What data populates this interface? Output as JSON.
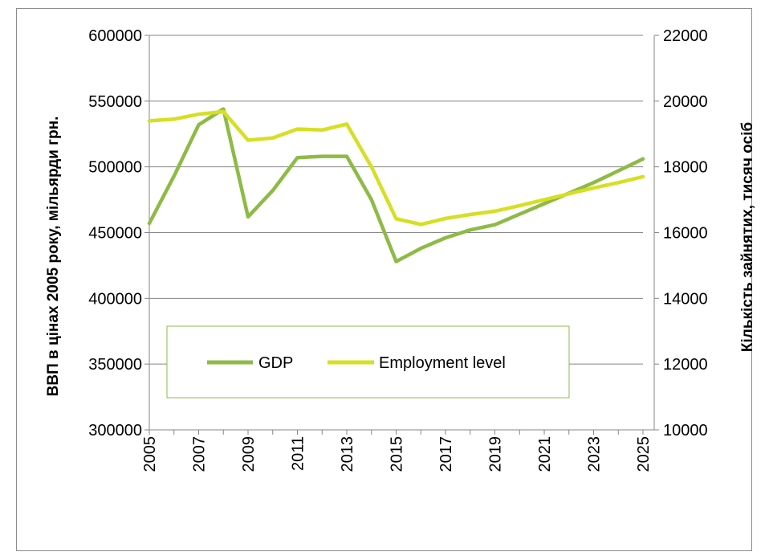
{
  "chart_data": {
    "type": "line",
    "x": [
      2005,
      2006,
      2007,
      2008,
      2009,
      2010,
      2011,
      2012,
      2013,
      2014,
      2015,
      2016,
      2017,
      2018,
      2019,
      2020,
      2021,
      2022,
      2023,
      2024,
      2025
    ],
    "x_tick_labels": [
      "2005",
      "2007",
      "2009",
      "2011",
      "2013",
      "2015",
      "2017",
      "2019",
      "2021",
      "2023",
      "2025"
    ],
    "ylabel": "ВВП в цінах 2005 року, мільярди грн.",
    "y2label": "Кількість зайнятих, тисяч осіб",
    "ylim": [
      300000,
      600000
    ],
    "y_ticks": [
      "300000",
      "350000",
      "400000",
      "450000",
      "500000",
      "550000",
      "600000"
    ],
    "y2lim": [
      10000,
      22000
    ],
    "y2_ticks": [
      "10000",
      "12000",
      "14000",
      "16000",
      "18000",
      "20000",
      "22000"
    ],
    "grid": "horizontal",
    "legend_position": "inside-bottom-left",
    "series": [
      {
        "name": "GDP",
        "axis": "left",
        "color": "#8dbb45",
        "values": [
          457000,
          493000,
          532000,
          544000,
          462000,
          482000,
          507000,
          508000,
          508000,
          475000,
          428000,
          438000,
          446000,
          452000,
          456000,
          464000,
          472000,
          480000,
          488000,
          497000,
          506000
        ]
      },
      {
        "name": "Employment level",
        "axis": "right",
        "color": "#d6df23",
        "values": [
          19400,
          19450,
          19600,
          19680,
          18810,
          18880,
          19150,
          19120,
          19300,
          18000,
          16420,
          16250,
          16430,
          16550,
          16650,
          16820,
          17000,
          17180,
          17360,
          17520,
          17700
        ]
      }
    ]
  }
}
